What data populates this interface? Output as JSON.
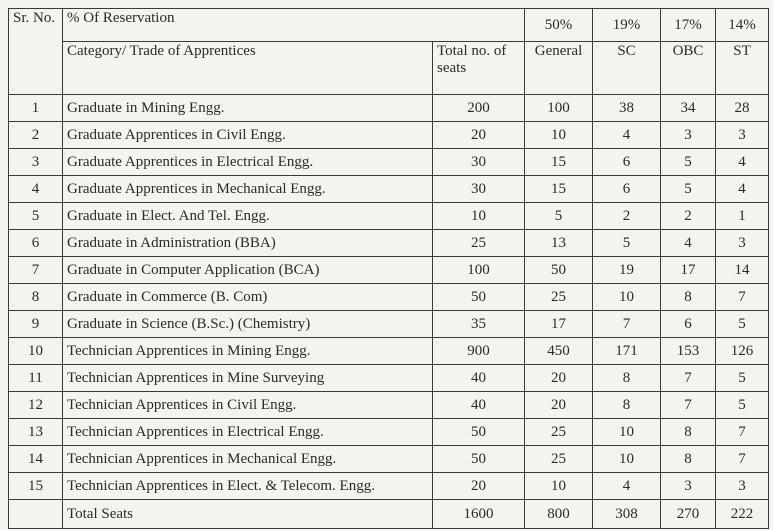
{
  "table": {
    "header": {
      "sr_no": "Sr. No.",
      "reservation_label": "% Of Reservation",
      "percentages": [
        "50%",
        "19%",
        "17%",
        "14%"
      ],
      "category": "Category/ Trade of Apprentices",
      "total_seats": "Total no. of seats",
      "columns": [
        "General",
        "SC",
        "OBC",
        "ST"
      ]
    },
    "rows": [
      [
        "1",
        "Graduate in Mining Engg.",
        "200",
        "100",
        "38",
        "34",
        "28"
      ],
      [
        "2",
        "Graduate Apprentices in Civil Engg.",
        "20",
        "10",
        "4",
        "3",
        "3"
      ],
      [
        "3",
        "Graduate Apprentices in Electrical Engg.",
        "30",
        "15",
        "6",
        "5",
        "4"
      ],
      [
        "4",
        "Graduate Apprentices in Mechanical Engg.",
        "30",
        "15",
        "6",
        "5",
        "4"
      ],
      [
        "5",
        "Graduate in Elect. And Tel. Engg.",
        "10",
        "5",
        "2",
        "2",
        "1"
      ],
      [
        "6",
        "Graduate in Administration (BBA)",
        "25",
        "13",
        "5",
        "4",
        "3"
      ],
      [
        "7",
        "Graduate in Computer Application (BCA)",
        "100",
        "50",
        "19",
        "17",
        "14"
      ],
      [
        "8",
        "Graduate in Commerce (B. Com)",
        "50",
        "25",
        "10",
        "8",
        "7"
      ],
      [
        "9",
        "Graduate in Science (B.Sc.) (Chemistry)",
        "35",
        "17",
        "7",
        "6",
        "5"
      ],
      [
        "10",
        "Technician Apprentices in Mining Engg.",
        "900",
        "450",
        "171",
        "153",
        "126"
      ],
      [
        "11",
        "Technician Apprentices in Mine Surveying",
        "40",
        "20",
        "8",
        "7",
        "5"
      ],
      [
        "12",
        "Technician Apprentices in Civil Engg.",
        "40",
        "20",
        "8",
        "7",
        "5"
      ],
      [
        "13",
        "Technician Apprentices in Electrical Engg.",
        "50",
        "25",
        "10",
        "8",
        "7"
      ],
      [
        "14",
        "Technician Apprentices in Mechanical Engg.",
        "50",
        "25",
        "10",
        "8",
        "7"
      ],
      [
        "15",
        "Technician Apprentices in Elect. & Telecom. Engg.",
        "20",
        "10",
        "4",
        "3",
        "3"
      ]
    ],
    "total": {
      "label": "Total Seats",
      "values": [
        "1600",
        "800",
        "308",
        "270",
        "222"
      ]
    }
  }
}
